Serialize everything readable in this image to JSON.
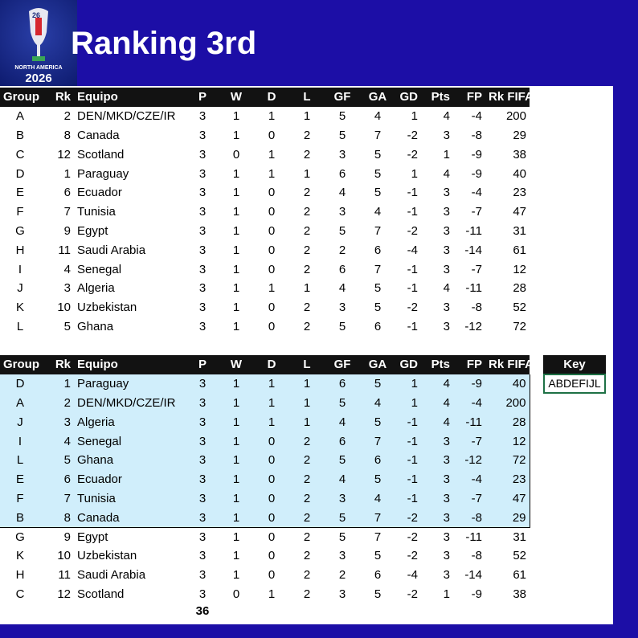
{
  "logo": {
    "number": "26",
    "region": "NORTH AMERICA",
    "year": "2026"
  },
  "title": "Ranking 3rd",
  "table1": {
    "headers": [
      "Group",
      "Rk",
      "Equipo",
      "P",
      "W",
      "D",
      "L",
      "GF",
      "GA",
      "GD",
      "Pts",
      "FP",
      "Rk FIFA"
    ],
    "rows": [
      [
        "A",
        2,
        "DEN/MKD/CZE/IR",
        3,
        1,
        1,
        1,
        5,
        4,
        1,
        4,
        -4,
        200
      ],
      [
        "B",
        8,
        "Canada",
        3,
        1,
        0,
        2,
        5,
        7,
        -2,
        3,
        -8,
        29
      ],
      [
        "C",
        12,
        "Scotland",
        3,
        0,
        1,
        2,
        3,
        5,
        -2,
        1,
        -9,
        38
      ],
      [
        "D",
        1,
        "Paraguay",
        3,
        1,
        1,
        1,
        6,
        5,
        1,
        4,
        -9,
        40
      ],
      [
        "E",
        6,
        "Ecuador",
        3,
        1,
        0,
        2,
        4,
        5,
        -1,
        3,
        -4,
        23
      ],
      [
        "F",
        7,
        "Tunisia",
        3,
        1,
        0,
        2,
        3,
        4,
        -1,
        3,
        -7,
        47
      ],
      [
        "G",
        9,
        "Egypt",
        3,
        1,
        0,
        2,
        5,
        7,
        -2,
        3,
        -11,
        31
      ],
      [
        "H",
        11,
        "Saudi Arabia",
        3,
        1,
        0,
        2,
        2,
        6,
        -4,
        3,
        -14,
        61
      ],
      [
        "I",
        4,
        "Senegal",
        3,
        1,
        0,
        2,
        6,
        7,
        -1,
        3,
        -7,
        12
      ],
      [
        "J",
        3,
        "Algeria",
        3,
        1,
        1,
        1,
        4,
        5,
        -1,
        4,
        -11,
        28
      ],
      [
        "K",
        10,
        "Uzbekistan",
        3,
        1,
        0,
        2,
        3,
        5,
        -2,
        3,
        -8,
        52
      ],
      [
        "L",
        5,
        "Ghana",
        3,
        1,
        0,
        2,
        5,
        6,
        -1,
        3,
        -12,
        72
      ]
    ]
  },
  "table2": {
    "headers": [
      "Group",
      "Rk",
      "Equipo",
      "P",
      "W",
      "D",
      "L",
      "GF",
      "GA",
      "GD",
      "Pts",
      "FP",
      "Rk FIFA"
    ],
    "rows": [
      [
        "D",
        1,
        "Paraguay",
        3,
        1,
        1,
        1,
        6,
        5,
        1,
        4,
        -9,
        40
      ],
      [
        "A",
        2,
        "DEN/MKD/CZE/IR",
        3,
        1,
        1,
        1,
        5,
        4,
        1,
        4,
        -4,
        200
      ],
      [
        "J",
        3,
        "Algeria",
        3,
        1,
        1,
        1,
        4,
        5,
        -1,
        4,
        -11,
        28
      ],
      [
        "I",
        4,
        "Senegal",
        3,
        1,
        0,
        2,
        6,
        7,
        -1,
        3,
        -7,
        12
      ],
      [
        "L",
        5,
        "Ghana",
        3,
        1,
        0,
        2,
        5,
        6,
        -1,
        3,
        -12,
        72
      ],
      [
        "E",
        6,
        "Ecuador",
        3,
        1,
        0,
        2,
        4,
        5,
        -1,
        3,
        -4,
        23
      ],
      [
        "F",
        7,
        "Tunisia",
        3,
        1,
        0,
        2,
        3,
        4,
        -1,
        3,
        -7,
        47
      ],
      [
        "B",
        8,
        "Canada",
        3,
        1,
        0,
        2,
        5,
        7,
        -2,
        3,
        -8,
        29
      ],
      [
        "G",
        9,
        "Egypt",
        3,
        1,
        0,
        2,
        5,
        7,
        -2,
        3,
        -11,
        31
      ],
      [
        "K",
        10,
        "Uzbekistan",
        3,
        1,
        0,
        2,
        3,
        5,
        -2,
        3,
        -8,
        52
      ],
      [
        "H",
        11,
        "Saudi Arabia",
        3,
        1,
        0,
        2,
        2,
        6,
        -4,
        3,
        -14,
        61
      ],
      [
        "C",
        12,
        "Scotland",
        3,
        0,
        1,
        2,
        3,
        5,
        -2,
        1,
        -9,
        38
      ]
    ]
  },
  "total": 36,
  "key": {
    "header": "Key",
    "value": "ABDEFIJL"
  }
}
